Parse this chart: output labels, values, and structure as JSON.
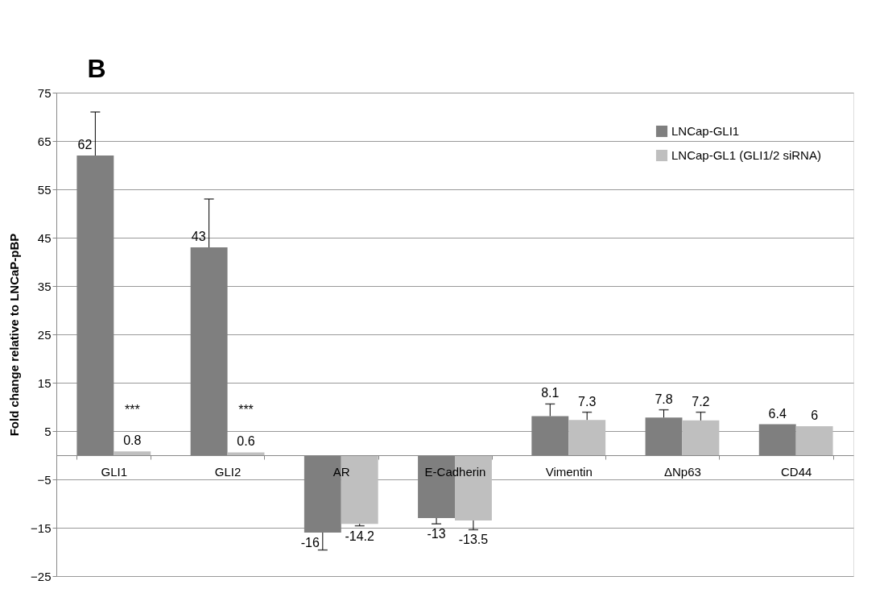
{
  "chart_data": {
    "type": "bar",
    "ylabel": "Fold change relative to LNCaP-pBP",
    "categories": [
      "GLI1",
      "GLI2",
      "AR",
      "E-Cadherin",
      "Vimentin",
      "ΔNp63",
      "CD44"
    ],
    "series": [
      {
        "name": "LNCap-GLI1",
        "color": "#7f7f7f",
        "values": [
          62,
          43,
          -16,
          -13,
          8.1,
          7.8,
          6.4
        ],
        "errors": [
          [
            62,
            71
          ],
          [
            43,
            53
          ],
          [
            -19.6,
            -16
          ],
          [
            -14.2,
            -13
          ],
          [
            8.1,
            10.6
          ],
          [
            7.8,
            9.4
          ],
          null
        ]
      },
      {
        "name": "LNCap-GL1 (GLI1/2 siRNA)",
        "color": "#bfbfbf",
        "values": [
          0.8,
          0.6,
          -14.2,
          -13.5,
          7.3,
          7.2,
          6
        ],
        "errors": [
          null,
          null,
          [
            -14.6,
            -14.2
          ],
          [
            -15.4,
            -13.5
          ],
          [
            7.3,
            8.9
          ],
          [
            7.2,
            8.9
          ],
          null
        ]
      }
    ],
    "ylim": [
      -25,
      75
    ],
    "yticks": [
      -25,
      -15,
      -5,
      5,
      15,
      25,
      35,
      45,
      55,
      65,
      75
    ],
    "grid": "y",
    "legend": "top right",
    "data_labels": true,
    "annotations": [
      "B",
      {
        "text": "***",
        "x": "GLI1",
        "y": 8
      },
      {
        "text": "***",
        "x": "GLI2",
        "y": 8
      }
    ]
  }
}
